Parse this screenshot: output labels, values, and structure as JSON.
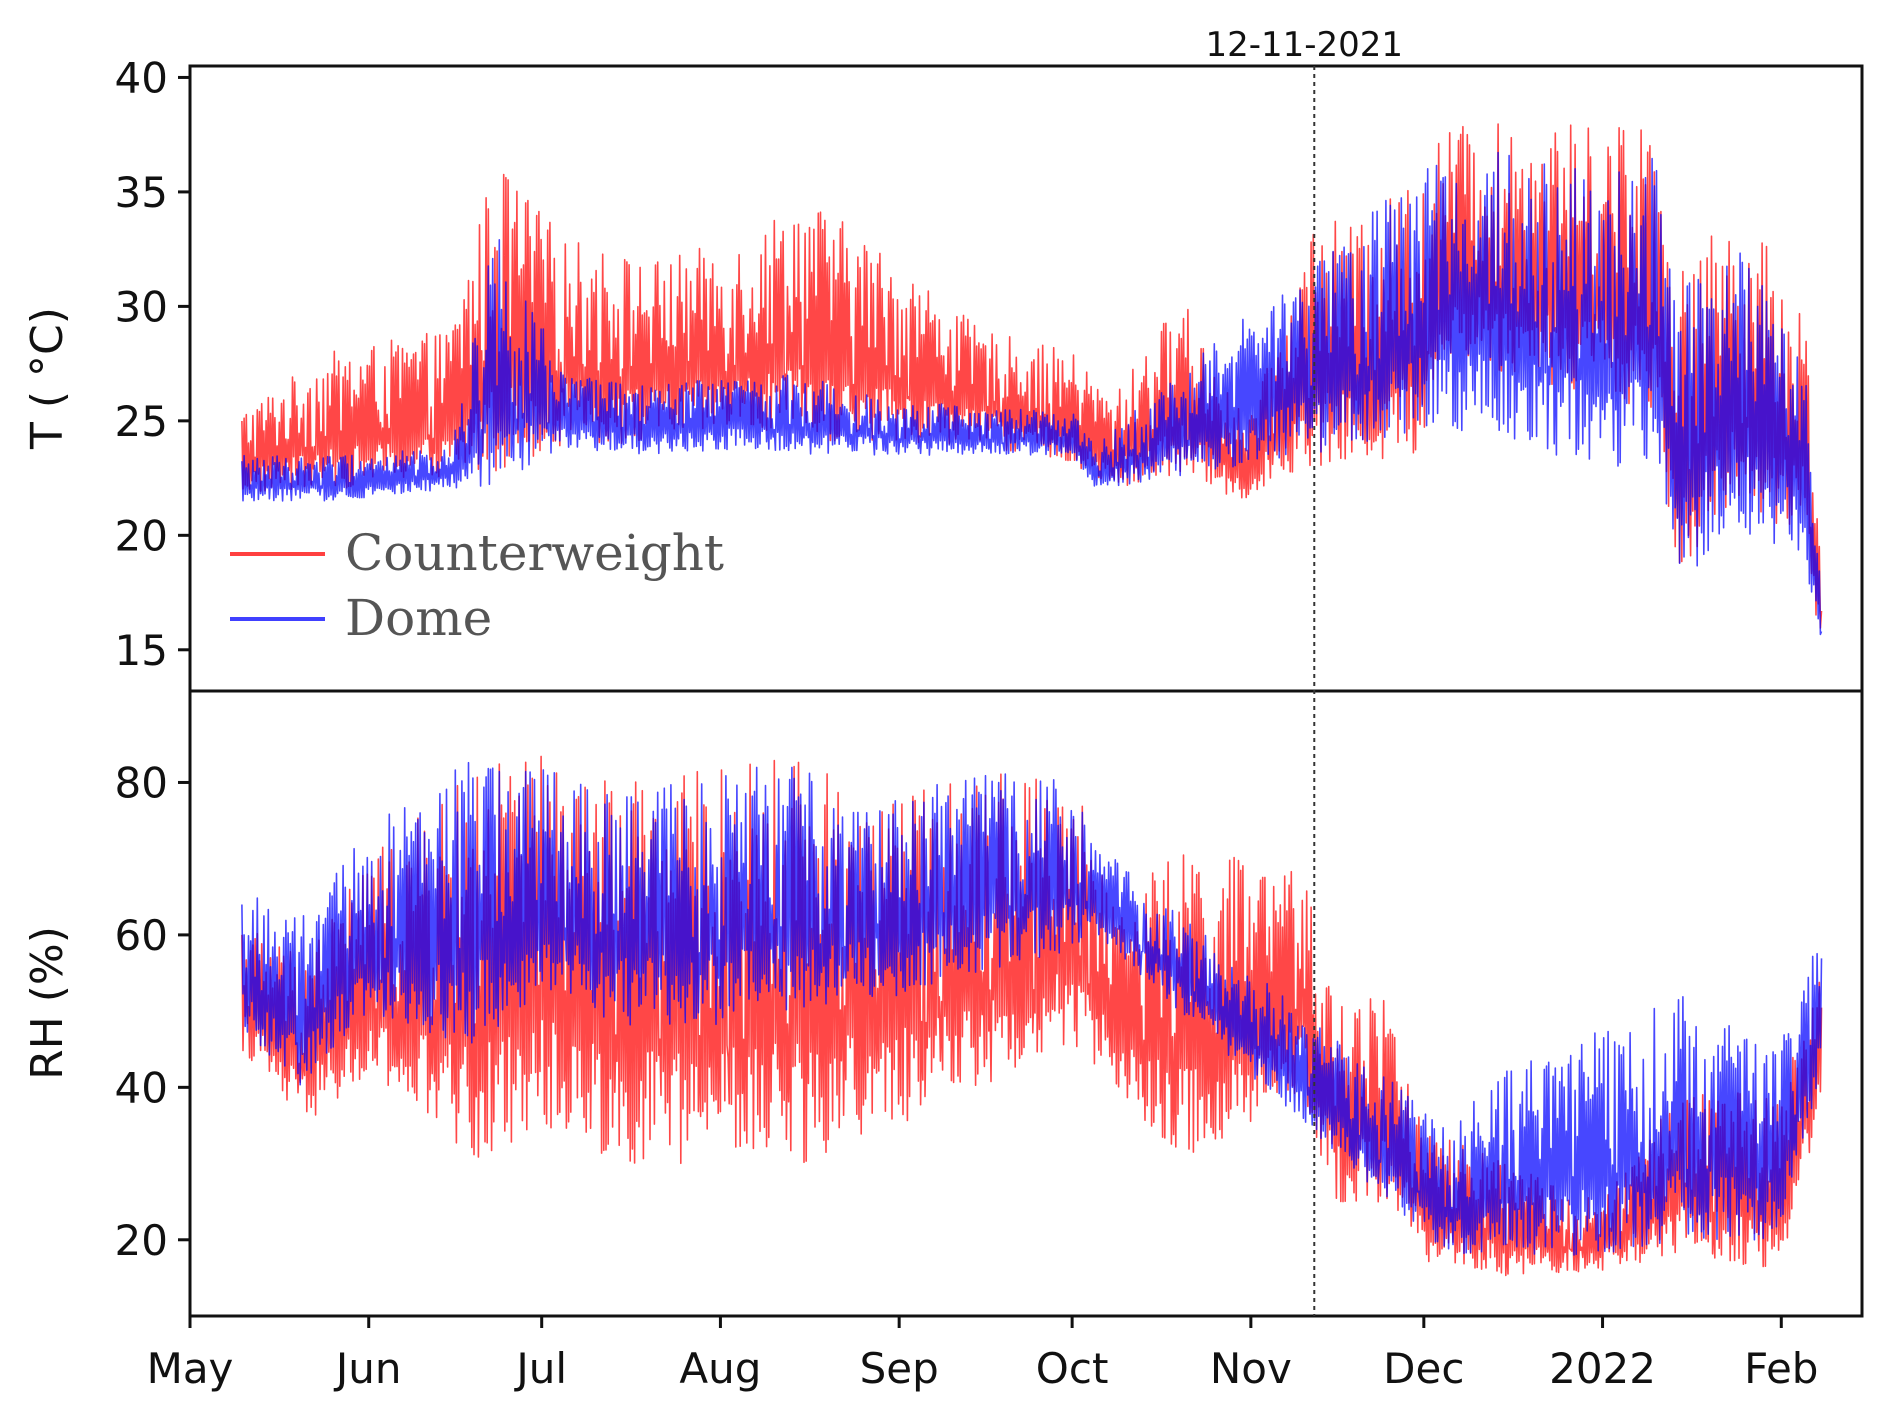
{
  "chart_data": [
    {
      "type": "line",
      "panel": "top",
      "ylabel": "T ( °C)",
      "ylim": [
        13.2,
        40.5
      ],
      "yticks": [
        15,
        20,
        25,
        30,
        35,
        40
      ],
      "x_start": "2021-05-01",
      "x_end": "2022-02-15",
      "xticks": [
        "May",
        "Jun",
        "Jul",
        "Aug",
        "Sep",
        "Oct",
        "Nov",
        "Dec",
        "2022",
        "Feb"
      ],
      "xtick_dates": [
        "2021-05-01",
        "2021-06-01",
        "2021-07-01",
        "2021-08-01",
        "2021-09-01",
        "2021-10-01",
        "2021-11-01",
        "2021-12-01",
        "2022-01-01",
        "2022-02-01"
      ],
      "annotation": {
        "date": "2021-11-12",
        "label": "12-11-2021"
      },
      "legend": {
        "placement": "lower-left",
        "entries": [
          "Counterweight",
          "Dome"
        ]
      },
      "grid": false,
      "series": [
        {
          "name": "Counterweight",
          "color": "#ff0000",
          "x": [
            "2021-05-10",
            "2021-05-25",
            "2021-06-15",
            "2021-06-23",
            "2021-07-05",
            "2021-07-20",
            "2021-08-05",
            "2021-08-15",
            "2021-09-01",
            "2021-09-15",
            "2021-10-01",
            "2021-10-08",
            "2021-10-20",
            "2021-10-31",
            "2021-11-05",
            "2021-11-12",
            "2021-11-20",
            "2021-11-30",
            "2021-12-05",
            "2021-12-15",
            "2022-01-01",
            "2022-01-10",
            "2022-01-14",
            "2022-01-25",
            "2022-02-05",
            "2022-02-08"
          ],
          "low": [
            21.8,
            22.0,
            22.5,
            22.8,
            24.0,
            24.0,
            24.5,
            24.0,
            24.0,
            24.0,
            23.0,
            22.0,
            22.5,
            21.5,
            22.5,
            23.0,
            23.0,
            23.5,
            28.0,
            27.0,
            26.0,
            25.5,
            18.5,
            21.0,
            20.0,
            14.5
          ],
          "high": [
            25.5,
            28.0,
            29.0,
            36.5,
            33.0,
            32.0,
            33.0,
            35.0,
            32.0,
            29.0,
            28.0,
            26.0,
            30.5,
            25.0,
            28.0,
            34.0,
            33.5,
            36.0,
            38.0,
            38.0,
            38.0,
            38.5,
            31.5,
            34.5,
            30.0,
            19.0
          ]
        },
        {
          "name": "Dome",
          "color": "#0000ff",
          "x": [
            "2021-05-10",
            "2021-05-25",
            "2021-06-15",
            "2021-06-23",
            "2021-07-05",
            "2021-07-20",
            "2021-08-05",
            "2021-08-15",
            "2021-09-01",
            "2021-09-15",
            "2021-10-01",
            "2021-10-05",
            "2021-12-05",
            "2021-12-15",
            "2022-01-01",
            "2022-01-10",
            "2022-01-14",
            "2022-01-25",
            "2022-02-05",
            "2022-02-08"
          ],
          "low": [
            21.5,
            21.5,
            22.0,
            22.0,
            23.8,
            23.5,
            23.8,
            23.5,
            23.5,
            23.5,
            23.5,
            22.0,
            24.5,
            24.0,
            23.0,
            23.0,
            18.0,
            20.0,
            19.0,
            14.5
          ],
          "high": [
            23.5,
            23.5,
            23.8,
            33.5,
            27.0,
            26.5,
            27.0,
            27.0,
            26.0,
            25.5,
            25.5,
            24.0,
            37.0,
            37.0,
            36.0,
            36.5,
            31.5,
            32.5,
            28.0,
            17.0
          ]
        }
      ]
    },
    {
      "type": "line",
      "panel": "bottom",
      "ylabel": "RH (%)",
      "ylim": [
        10,
        92
      ],
      "yticks": [
        20,
        40,
        60,
        80
      ],
      "x_start": "2021-05-01",
      "x_end": "2022-02-15",
      "xticks": [
        "May",
        "Jun",
        "Jul",
        "Aug",
        "Sep",
        "Oct",
        "Nov",
        "Dec",
        "2022",
        "Feb"
      ],
      "xtick_dates": [
        "2021-05-01",
        "2021-06-01",
        "2021-07-01",
        "2021-08-01",
        "2021-09-01",
        "2021-10-01",
        "2021-11-01",
        "2021-12-01",
        "2022-01-01",
        "2022-02-01"
      ],
      "annotation": {
        "date": "2021-11-12"
      },
      "grid": false,
      "series": [
        {
          "name": "Counterweight",
          "color": "#ff0000",
          "x": [
            "2021-05-10",
            "2021-05-20",
            "2021-06-01",
            "2021-06-20",
            "2021-07-01",
            "2021-07-15",
            "2021-08-01",
            "2021-08-15",
            "2021-09-01",
            "2021-09-15",
            "2021-10-01",
            "2021-10-10",
            "2021-10-20",
            "2021-11-01",
            "2021-11-10",
            "2021-11-15",
            "2021-11-25",
            "2021-12-01",
            "2021-12-15",
            "2022-01-01",
            "2022-01-15",
            "2022-02-01",
            "2022-02-08"
          ],
          "low": [
            45.0,
            35.0,
            40.0,
            30.0,
            35.0,
            30.0,
            30.0,
            30.0,
            35.0,
            40.0,
            45.0,
            38.0,
            30.0,
            35.0,
            40.0,
            25.0,
            25.0,
            17.0,
            15.0,
            16.0,
            18.0,
            16.0,
            38.0
          ],
          "high": [
            62.0,
            58.0,
            70.0,
            82.0,
            84.0,
            80.0,
            82.0,
            84.0,
            78.0,
            82.0,
            80.0,
            65.0,
            72.0,
            70.0,
            68.0,
            54.0,
            52.0,
            35.0,
            30.0,
            25.0,
            40.0,
            40.0,
            55.0
          ]
        },
        {
          "name": "Dome",
          "color": "#0000ff",
          "x": [
            "2021-05-10",
            "2021-05-20",
            "2021-06-01",
            "2021-06-20",
            "2021-07-01",
            "2021-07-15",
            "2021-08-01",
            "2021-08-15",
            "2021-09-01",
            "2021-09-15",
            "2021-10-01",
            "2021-10-05",
            "2021-12-05",
            "2021-12-15",
            "2022-01-01",
            "2022-01-15",
            "2022-02-01",
            "2022-02-08"
          ],
          "low": [
            48.0,
            40.0,
            50.0,
            45.0,
            52.0,
            48.0,
            48.0,
            50.0,
            52.0,
            55.0,
            58.0,
            60.0,
            18.0,
            18.0,
            18.0,
            20.0,
            20.0,
            42.0
          ],
          "high": [
            66.0,
            62.0,
            74.0,
            84.0,
            82.0,
            78.0,
            82.0,
            82.0,
            78.0,
            82.0,
            80.0,
            72.0,
            35.0,
            42.0,
            48.0,
            52.0,
            46.0,
            62.0
          ]
        }
      ]
    }
  ]
}
